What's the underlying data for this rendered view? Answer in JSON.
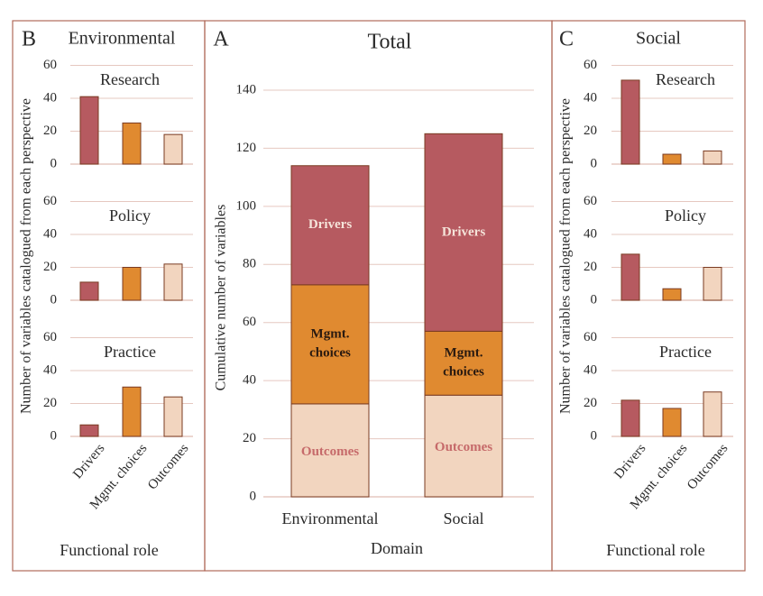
{
  "colors": {
    "drivers": "#b65a60",
    "mgmt": "#e08a30",
    "outcomes": "#f2d5bf",
    "outline": "#7a3b22",
    "frame": "#b06a5a",
    "grid": "#e6c8c0",
    "text": "#2a2a2a",
    "label_drivers": "#f5e4da",
    "label_mgmt": "#2a1a10",
    "label_outcomes": "#c66a6a"
  },
  "chart_data": [
    {
      "panel": "A",
      "type": "bar",
      "stacked": true,
      "title": "Total",
      "xlabel": "Domain",
      "ylabel": "Cumulative number of variables",
      "categories": [
        "Environmental",
        "Social"
      ],
      "ylim": [
        0,
        140
      ],
      "yticks": [
        0,
        20,
        40,
        60,
        80,
        100,
        120,
        140
      ],
      "grid": true,
      "series": [
        {
          "name": "Outcomes",
          "values": [
            32,
            35
          ]
        },
        {
          "name": "Mgmt. choices",
          "values": [
            41,
            22
          ]
        },
        {
          "name": "Drivers",
          "values": [
            41,
            68
          ]
        }
      ]
    },
    {
      "panel": "B",
      "type": "bar",
      "title": "Environmental",
      "xlabel": "Functional role",
      "ylabel": "Number of variables catalogued from each perspective",
      "categories": [
        "Drivers",
        "Mgmt. choices",
        "Outcomes"
      ],
      "ylim": [
        0,
        60
      ],
      "yticks": [
        0,
        20,
        40,
        60
      ],
      "grid": true,
      "subplots": [
        {
          "title": "Research",
          "values": [
            41,
            25,
            18
          ]
        },
        {
          "title": "Policy",
          "values": [
            11,
            20,
            22
          ]
        },
        {
          "title": "Practice",
          "values": [
            7,
            30,
            24
          ]
        }
      ]
    },
    {
      "panel": "C",
      "type": "bar",
      "title": "Social",
      "xlabel": "Functional role",
      "ylabel": "Number of variables catalogued from each perspective",
      "categories": [
        "Drivers",
        "Mgmt. choices",
        "Outcomes"
      ],
      "ylim": [
        0,
        60
      ],
      "yticks": [
        0,
        20,
        40,
        60
      ],
      "grid": true,
      "subplots": [
        {
          "title": "Research",
          "values": [
            51,
            6,
            8
          ]
        },
        {
          "title": "Policy",
          "values": [
            28,
            7,
            20
          ]
        },
        {
          "title": "Practice",
          "values": [
            22,
            17,
            27
          ]
        }
      ]
    }
  ],
  "segment_labels": {
    "drivers": "Drivers",
    "mgmt_line1": "Mgmt.",
    "mgmt_line2": "choices",
    "outcomes": "Outcomes"
  }
}
